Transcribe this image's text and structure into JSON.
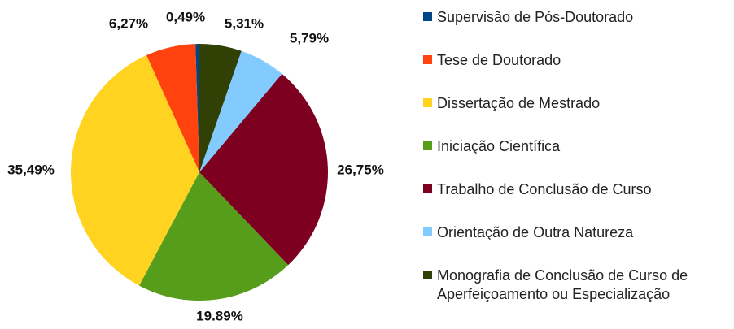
{
  "chart_data": {
    "type": "pie",
    "categories": [
      "Supervisão de Pós-Doutorado",
      "Tese de Doutorado",
      "Dissertação de Mestrado",
      "Iniciação Científica",
      "Trabalho de Conclusão de Curso",
      "Orientação de Outra Natureza",
      "Monografia de Conclusão de Curso de Aperfeiçoamento ou Especialização"
    ],
    "values": [
      0.49,
      6.27,
      35.49,
      19.89,
      26.75,
      5.79,
      5.31
    ],
    "value_labels": [
      "0,49%",
      "6,27%",
      "35,49%",
      "19.89%",
      "26,75%",
      "5,79%",
      "5,31%"
    ],
    "colors": [
      "#004586",
      "#ff420e",
      "#ffd320",
      "#579d1c",
      "#7e0021",
      "#83caff",
      "#314004"
    ]
  }
}
